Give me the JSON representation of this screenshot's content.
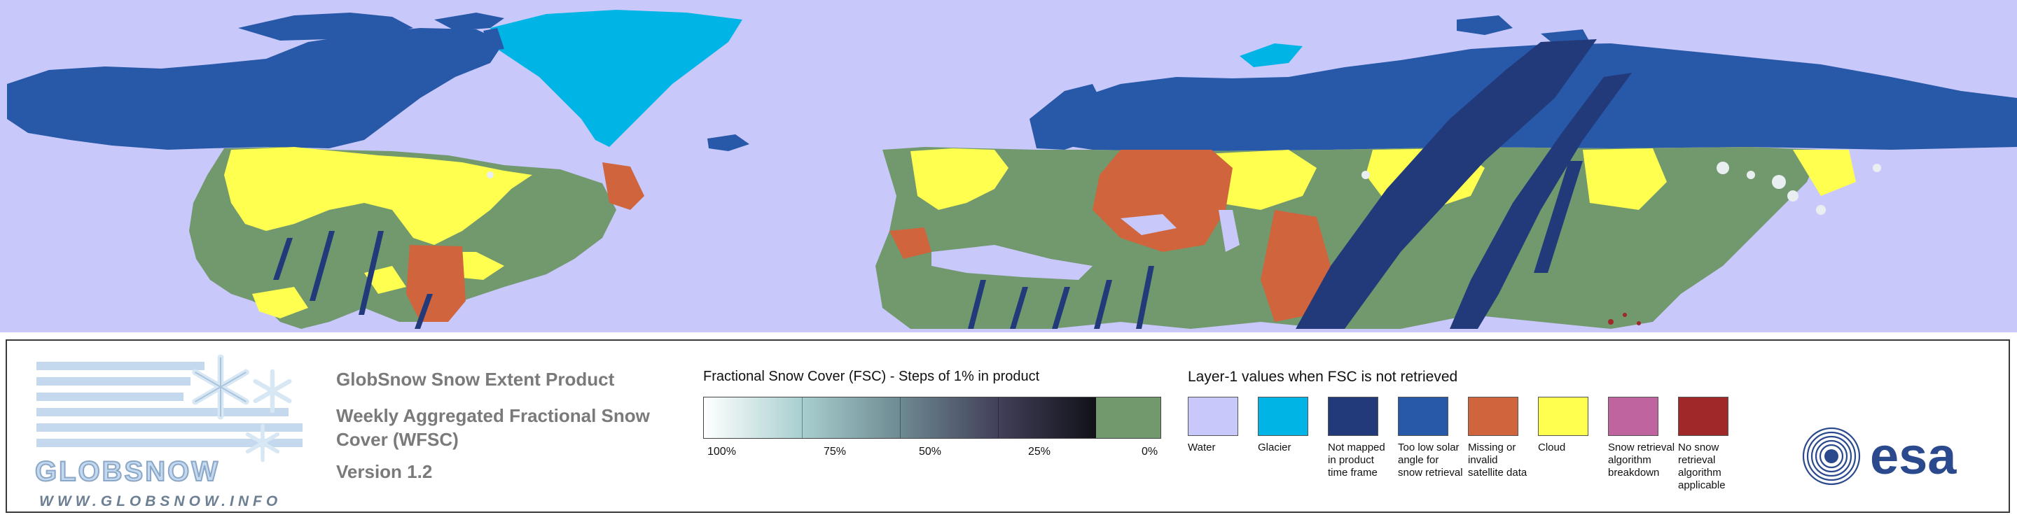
{
  "product": {
    "title": "GlobSnow Snow Extent Product",
    "subtitle": "Weekly Aggregated Fractional Snow Cover (WFSC)",
    "version": "Version 1.2"
  },
  "logo": {
    "word": "GLOBSNOW",
    "url": "WWW.GLOBSNOW.INFO"
  },
  "fsc_scale": {
    "title": "Fractional Snow Cover (FSC) - Steps of 1% in product",
    "labels": [
      "100%",
      "75%",
      "50%",
      "25%",
      "0%"
    ],
    "colors": [
      "#ffffff",
      "#a8cfcf",
      "#6e8a92",
      "#42405a",
      "#111118"
    ],
    "zero_color": "#72986e"
  },
  "layer1": {
    "title": "Layer-1 values when FSC is not retrieved",
    "items": [
      {
        "label": "Water",
        "color": "#c8c8fa"
      },
      {
        "label": "Glacier",
        "color": "#00b4e6"
      },
      {
        "label": "Not mapped in product time frame",
        "color": "#233a7a"
      },
      {
        "label": "Too low solar angle for snow retrieval",
        "color": "#2858a8"
      },
      {
        "label": "Missing or invalid satellite data",
        "color": "#d0643c"
      },
      {
        "label": "Cloud",
        "color": "#ffff50"
      },
      {
        "label": "Snow retrieval algorithm breakdown",
        "color": "#c064a0"
      },
      {
        "label": "No snow retrieval algorithm applicable",
        "color": "#a02828"
      }
    ]
  },
  "esa_logo": {
    "text": "esa"
  },
  "map_colors": {
    "water": "#c8c8fa",
    "glacier": "#00b4e6",
    "not_mapped": "#233a7a",
    "low_sun": "#2858a8",
    "missing": "#d0643c",
    "cloud": "#ffff50",
    "no_snow": "#72986e",
    "snow_light": "#e9eef0"
  }
}
